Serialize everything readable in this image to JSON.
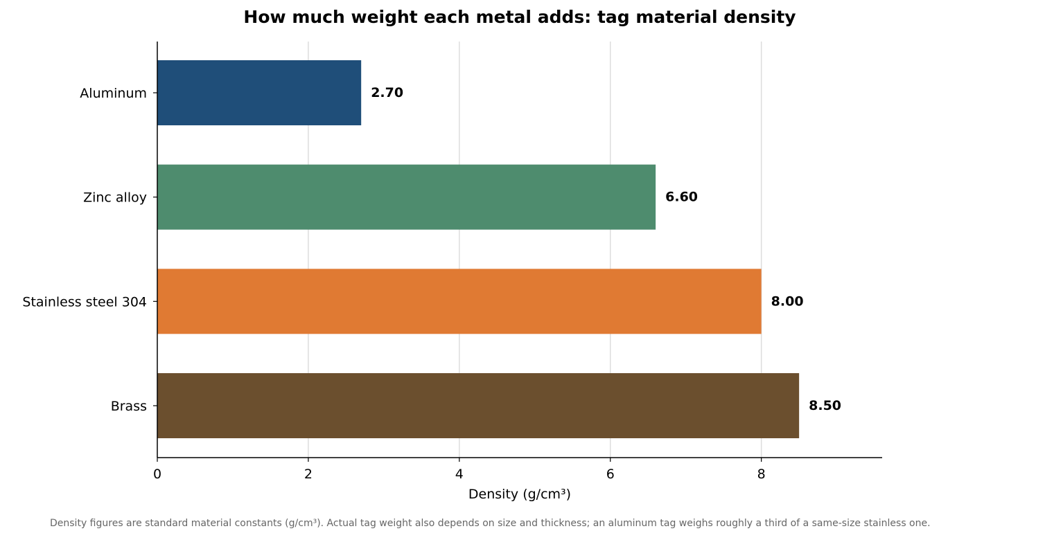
{
  "chart_data": {
    "type": "bar",
    "orientation": "horizontal",
    "title": "How much weight each metal adds: tag material density",
    "xlabel": "Density (g/cm³)",
    "ylabel": "",
    "categories": [
      "Aluminum",
      "Zinc alloy",
      "Stainless steel 304",
      "Brass"
    ],
    "values": [
      2.7,
      6.6,
      8.0,
      8.5
    ],
    "value_labels": [
      "2.70",
      "6.60",
      "8.00",
      "8.50"
    ],
    "colors": [
      "#1f4e79",
      "#4e8c6e",
      "#e07a33",
      "#6b4f2e"
    ],
    "xlim": [
      0,
      9.6
    ],
    "xticks": [
      0,
      2,
      4,
      6,
      8
    ],
    "xtick_labels": [
      "0",
      "2",
      "4",
      "6",
      "8"
    ],
    "grid": "vertical",
    "legend": "none"
  },
  "footnote": "Density figures are standard material constants (g/cm³). Actual tag weight also depends on size and thickness; an aluminum tag weighs roughly a third of a same-size stainless one."
}
